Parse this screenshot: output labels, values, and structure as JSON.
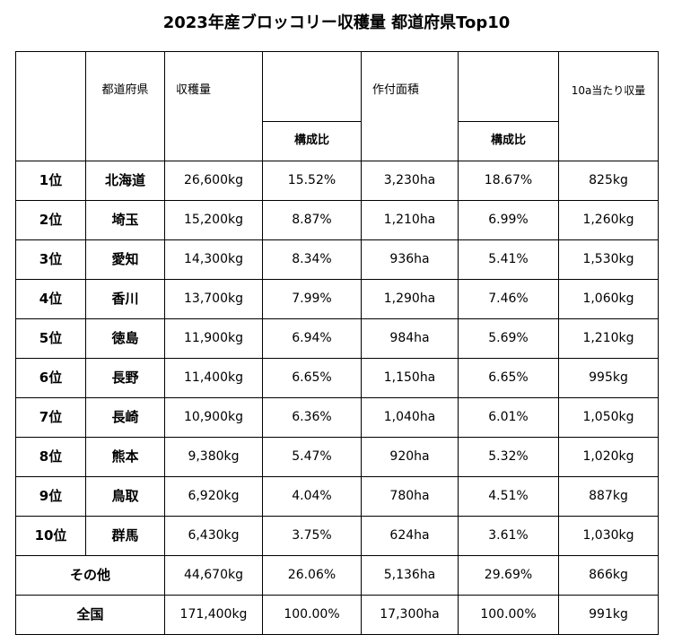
{
  "title": "2023年産ブロッコリー収穫量 都道府県Top10",
  "headers": {
    "prefecture": "都道府県",
    "harvest": "収穫量",
    "harvest_share": "構成比",
    "area": "作付面積",
    "area_share": "構成比",
    "yield_per_10a": "10a当たり収量"
  },
  "rows": [
    {
      "rank": "1位",
      "prefecture": "北海道",
      "harvest": "26,600kg",
      "harvest_share": "15.52%",
      "area": "3,230ha",
      "area_share": "18.67%",
      "yield": "825kg"
    },
    {
      "rank": "2位",
      "prefecture": "埼玉",
      "harvest": "15,200kg",
      "harvest_share": "8.87%",
      "area": "1,210ha",
      "area_share": "6.99%",
      "yield": "1,260kg"
    },
    {
      "rank": "3位",
      "prefecture": "愛知",
      "harvest": "14,300kg",
      "harvest_share": "8.34%",
      "area": "936ha",
      "area_share": "5.41%",
      "yield": "1,530kg"
    },
    {
      "rank": "4位",
      "prefecture": "香川",
      "harvest": "13,700kg",
      "harvest_share": "7.99%",
      "area": "1,290ha",
      "area_share": "7.46%",
      "yield": "1,060kg"
    },
    {
      "rank": "5位",
      "prefecture": "徳島",
      "harvest": "11,900kg",
      "harvest_share": "6.94%",
      "area": "984ha",
      "area_share": "5.69%",
      "yield": "1,210kg"
    },
    {
      "rank": "6位",
      "prefecture": "長野",
      "harvest": "11,400kg",
      "harvest_share": "6.65%",
      "area": "1,150ha",
      "area_share": "6.65%",
      "yield": "995kg"
    },
    {
      "rank": "7位",
      "prefecture": "長崎",
      "harvest": "10,900kg",
      "harvest_share": "6.36%",
      "area": "1,040ha",
      "area_share": "6.01%",
      "yield": "1,050kg"
    },
    {
      "rank": "8位",
      "prefecture": "熊本",
      "harvest": "9,380kg",
      "harvest_share": "5.47%",
      "area": "920ha",
      "area_share": "5.32%",
      "yield": "1,020kg"
    },
    {
      "rank": "9位",
      "prefecture": "鳥取",
      "harvest": "6,920kg",
      "harvest_share": "4.04%",
      "area": "780ha",
      "area_share": "4.51%",
      "yield": "887kg"
    },
    {
      "rank": "10位",
      "prefecture": "群馬",
      "harvest": "6,430kg",
      "harvest_share": "3.75%",
      "area": "624ha",
      "area_share": "3.61%",
      "yield": "1,030kg"
    }
  ],
  "others": {
    "label": "その他",
    "harvest": "44,670kg",
    "harvest_share": "26.06%",
    "area": "5,136ha",
    "area_share": "29.69%",
    "yield": "866kg"
  },
  "national": {
    "label": "全国",
    "harvest": "171,400kg",
    "harvest_share": "100.00%",
    "area": "17,300ha",
    "area_share": "100.00%",
    "yield": "991kg"
  }
}
